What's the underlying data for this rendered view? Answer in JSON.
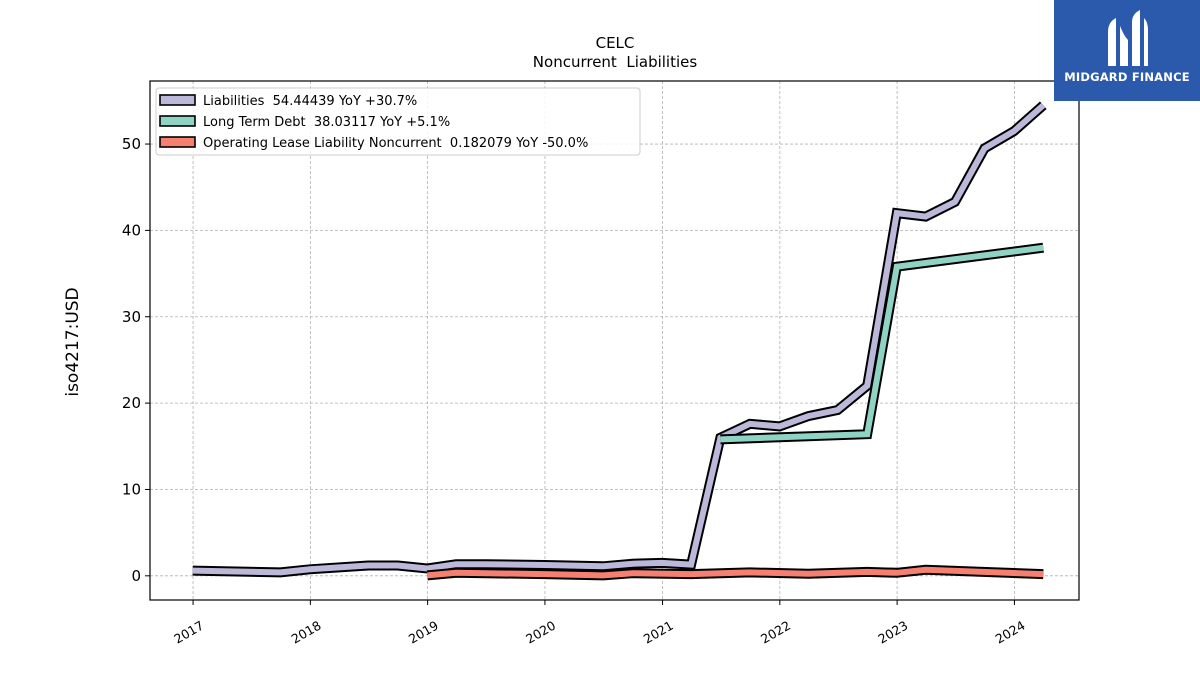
{
  "chart_data": {
    "type": "line",
    "title": "CELC",
    "subtitle": "Noncurrent  Liabilities",
    "ylabel": "iso4217:USD",
    "xlabel": "",
    "xlim": [
      "2016-08-20",
      "2024-07-20"
    ],
    "ylim": [
      -2.8,
      57.3
    ],
    "yticks": [
      0,
      10,
      20,
      30,
      40,
      50
    ],
    "xticks": [
      "2017",
      "2018",
      "2019",
      "2020",
      "2021",
      "2022",
      "2023",
      "2024"
    ],
    "grid": true,
    "legend_position": "top-left",
    "series": [
      {
        "name": "Liabilities  54.44439 YoY +30.7%",
        "color": "#bcb8da",
        "points": [
          [
            "2016-12-31",
            0.6
          ],
          [
            "2017-09-30",
            0.4
          ],
          [
            "2017-12-31",
            0.75
          ],
          [
            "2018-06-30",
            1.2
          ],
          [
            "2018-09-30",
            1.2
          ],
          [
            "2018-12-31",
            0.85
          ],
          [
            "2019-03-31",
            1.35
          ],
          [
            "2019-06-30",
            1.35
          ],
          [
            "2019-12-31",
            1.25
          ],
          [
            "2020-06-30",
            1.1
          ],
          [
            "2020-09-30",
            1.4
          ],
          [
            "2020-12-31",
            1.5
          ],
          [
            "2021-03-31",
            1.3
          ],
          [
            "2021-06-30",
            16.0
          ],
          [
            "2021-09-30",
            17.6
          ],
          [
            "2021-12-31",
            17.3
          ],
          [
            "2022-03-31",
            18.5
          ],
          [
            "2022-06-30",
            19.2
          ],
          [
            "2022-09-30",
            22.0
          ],
          [
            "2022-12-31",
            42.0
          ],
          [
            "2023-03-31",
            41.6
          ],
          [
            "2023-06-30",
            43.3
          ],
          [
            "2023-09-30",
            49.5
          ],
          [
            "2023-12-31",
            51.5
          ],
          [
            "2024-03-31",
            54.5
          ]
        ]
      },
      {
        "name": "Long Term Debt  38.03117 YoY +5.1%",
        "color": "#8ed3c3",
        "points": [
          [
            "2021-06-30",
            15.8
          ],
          [
            "2022-09-30",
            16.4
          ],
          [
            "2022-12-31",
            35.8
          ],
          [
            "2024-03-31",
            38.0
          ]
        ]
      },
      {
        "name": "Operating Lease Liability Noncurrent  0.182079 YoY -50.0%",
        "color": "#f58072",
        "points": [
          [
            "2018-12-31",
            0.05
          ],
          [
            "2019-03-31",
            0.35
          ],
          [
            "2019-12-31",
            0.2
          ],
          [
            "2020-06-30",
            0.05
          ],
          [
            "2020-09-30",
            0.3
          ],
          [
            "2021-03-31",
            0.2
          ],
          [
            "2021-09-30",
            0.4
          ],
          [
            "2022-03-31",
            0.25
          ],
          [
            "2022-09-30",
            0.45
          ],
          [
            "2022-12-31",
            0.35
          ],
          [
            "2023-03-31",
            0.7
          ],
          [
            "2024-03-31",
            0.2
          ]
        ]
      }
    ]
  },
  "logo": {
    "text": "MIDGARD FINANCE",
    "icon": "mh-monogram-icon",
    "background": "#2b5aad"
  }
}
